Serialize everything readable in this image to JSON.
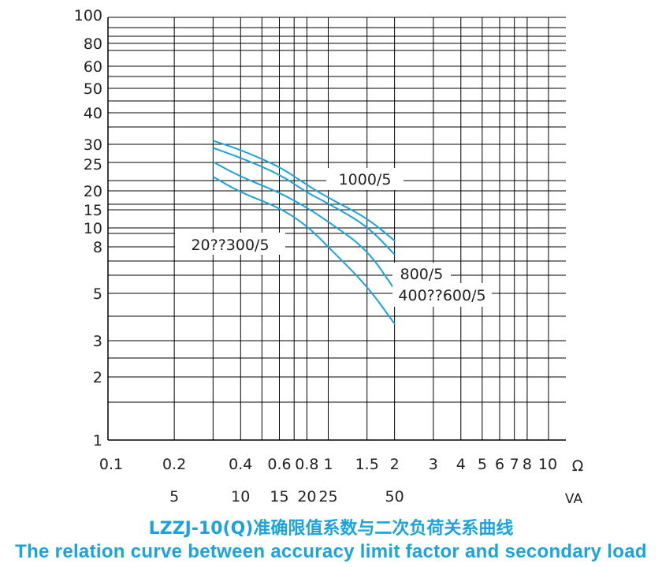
{
  "title_cn": "LZZJ-10(Q)准确限值系数与二次负荷关系曲线",
  "title_en": "The relation curve between accuracy limit factor and secondary load",
  "chart_data": {
    "type": "line",
    "xscale": "log",
    "yscale": "irregular",
    "grid": true,
    "xlim": [
      0.1,
      10
    ],
    "ylim": [
      1,
      100
    ],
    "x_unit": "Ω",
    "x2_unit": "VA",
    "x_ticks": [
      "0.1",
      "0.2",
      "0.4",
      "0.6",
      "0.8",
      "1",
      "1.5",
      "2",
      "3",
      "4",
      "5",
      "6",
      "7",
      "8",
      "10"
    ],
    "x_ticks_va": [
      {
        "ohm": 0.2,
        "label": "5"
      },
      {
        "ohm": 0.4,
        "label": "10"
      },
      {
        "ohm": 0.6,
        "label": "15"
      },
      {
        "ohm": 0.8,
        "label": "20"
      },
      {
        "ohm": 1,
        "label": "25"
      },
      {
        "ohm": 2,
        "label": "50"
      },
      {
        "ohm": 10,
        "label": "VA"
      }
    ],
    "y_ticks": [
      "1",
      "2",
      "3",
      "5",
      "8",
      "10",
      "15",
      "20",
      "25",
      "30",
      "40",
      "50",
      "60",
      "80",
      "100"
    ],
    "series": [
      {
        "name": "1000/5",
        "points": [
          [
            0.3,
            31
          ],
          [
            0.4,
            28.5
          ],
          [
            0.6,
            24.5
          ],
          [
            0.8,
            21
          ],
          [
            1.0,
            18
          ],
          [
            1.5,
            12.5
          ],
          [
            2.0,
            8.6
          ]
        ]
      },
      {
        "name": "800/5",
        "points": [
          [
            0.3,
            29
          ],
          [
            0.4,
            26.5
          ],
          [
            0.6,
            23
          ],
          [
            0.8,
            19.5
          ],
          [
            1.0,
            16.5
          ],
          [
            1.5,
            10.5
          ],
          [
            2.0,
            7.4
          ]
        ]
      },
      {
        "name": "400??600/5",
        "points": [
          [
            0.3,
            25.5
          ],
          [
            0.4,
            22.5
          ],
          [
            0.6,
            19.5
          ],
          [
            0.8,
            15.5
          ],
          [
            1.0,
            11.5
          ],
          [
            1.5,
            7.8
          ],
          [
            2.0,
            5.2
          ]
        ]
      },
      {
        "name": "20??300/5",
        "points": [
          [
            0.3,
            22.5
          ],
          [
            0.4,
            19.5
          ],
          [
            0.6,
            15.5
          ],
          [
            0.8,
            10.5
          ],
          [
            1.0,
            8.0
          ],
          [
            1.5,
            5.4
          ],
          [
            2.0,
            3.6
          ]
        ]
      }
    ],
    "labels": [
      "1000/5",
      "800/5",
      "400??600/5",
      "20??300/5"
    ],
    "line_color": "#1aa3dd",
    "grid_color": "#000000"
  }
}
